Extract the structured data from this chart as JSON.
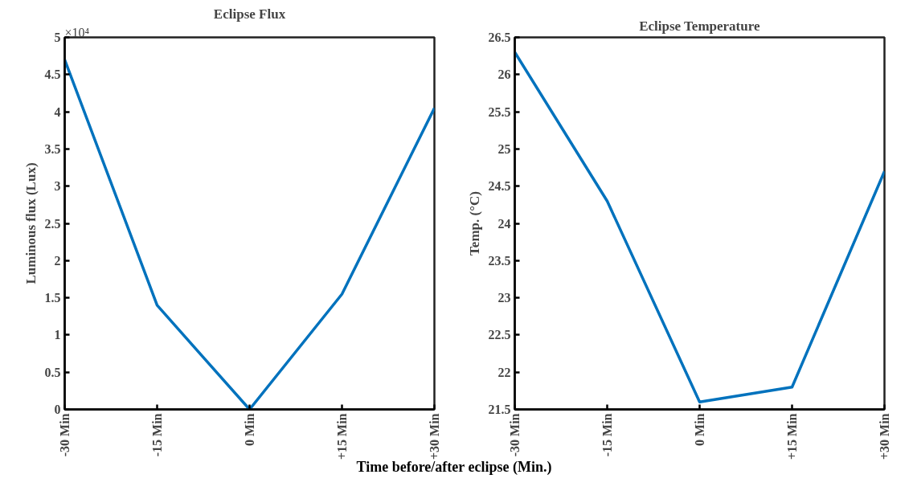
{
  "chart_data": [
    {
      "type": "line",
      "title": "Eclipse Flux",
      "xlabel": "Time before/after eclipse (Min.)",
      "ylabel": "Luminous flux (Lux)",
      "annotations": [
        "×10⁴"
      ],
      "categories": [
        "-30 Min",
        "-15 Min",
        "0 Min",
        "+15 Min",
        "+30 Min"
      ],
      "series": [
        {
          "color": "#0072bd",
          "values": [
            4.7,
            1.4,
            0,
            1.55,
            4.05
          ]
        }
      ],
      "ylim": [
        0,
        5
      ],
      "yticks": [
        0,
        0.5,
        1,
        1.5,
        2,
        2.5,
        3,
        3.5,
        4,
        4.5,
        5
      ]
    },
    {
      "type": "line",
      "title": "Eclipse Temperature",
      "ylabel": "Temp. (°C)",
      "categories": [
        "-30 Min",
        "-15 Min",
        "0 Min",
        "+15 Min",
        "+30 Min"
      ],
      "series": [
        {
          "color": "#0072bd",
          "values": [
            26.3,
            24.3,
            21.6,
            21.8,
            24.7
          ]
        }
      ],
      "ylim": [
        21.5,
        26.5
      ],
      "yticks": [
        21.5,
        22,
        22.5,
        23,
        23.5,
        24,
        24.5,
        25,
        25.5,
        26,
        26.5
      ]
    }
  ]
}
